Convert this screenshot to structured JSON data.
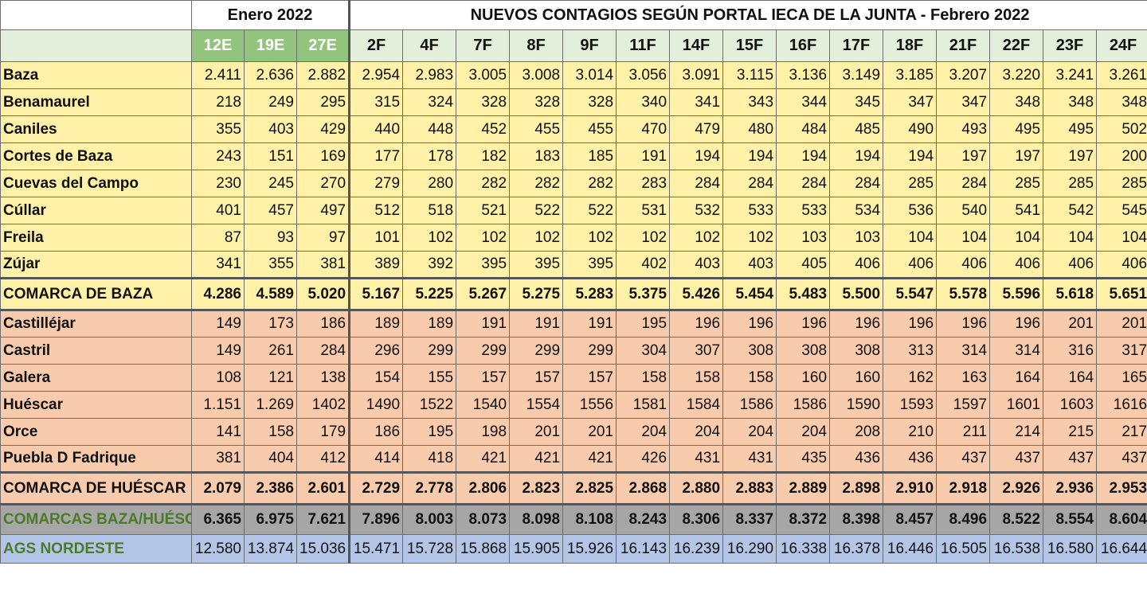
{
  "header": {
    "jan_group": "Enero 2022",
    "feb_group": "NUEVOS CONTAGIOS  SEGÚN PORTAL IECA DE LA JUNTA - Febrero 2022",
    "jan_dates": [
      "12E",
      "19E",
      "27E"
    ],
    "feb_dates": [
      "2F",
      "4F",
      "7F",
      "8F",
      "9F",
      "11F",
      "14F",
      "15F",
      "16F",
      "17F",
      "18F",
      "21F",
      "22F",
      "23F",
      "24F"
    ]
  },
  "rows": [
    {
      "name": "Baza",
      "group": "yellow",
      "values": [
        "2.411",
        "2.636",
        "2.882",
        "2.954",
        "2.983",
        "3.005",
        "3.008",
        "3.014",
        "3.056",
        "3.091",
        "3.115",
        "3.136",
        "3.149",
        "3.185",
        "3.207",
        "3.220",
        "3.241",
        "3.261"
      ]
    },
    {
      "name": "Benamaurel",
      "group": "yellow",
      "values": [
        "218",
        "249",
        "295",
        "315",
        "324",
        "328",
        "328",
        "328",
        "340",
        "341",
        "343",
        "344",
        "345",
        "347",
        "347",
        "348",
        "348",
        "348"
      ]
    },
    {
      "name": "Caniles",
      "group": "yellow",
      "values": [
        "355",
        "403",
        "429",
        "440",
        "448",
        "452",
        "455",
        "455",
        "470",
        "479",
        "480",
        "484",
        "485",
        "490",
        "493",
        "495",
        "495",
        "502"
      ]
    },
    {
      "name": "Cortes de Baza",
      "group": "yellow",
      "values": [
        "243",
        "151",
        "169",
        "177",
        "178",
        "182",
        "183",
        "185",
        "191",
        "194",
        "194",
        "194",
        "194",
        "194",
        "197",
        "197",
        "197",
        "200"
      ]
    },
    {
      "name": "Cuevas del Campo",
      "group": "yellow",
      "values": [
        "230",
        "245",
        "270",
        "279",
        "280",
        "282",
        "282",
        "282",
        "283",
        "284",
        "284",
        "284",
        "284",
        "285",
        "284",
        "285",
        "285",
        "285"
      ]
    },
    {
      "name": "Cúllar",
      "group": "yellow",
      "values": [
        "401",
        "457",
        "497",
        "512",
        "518",
        "521",
        "522",
        "522",
        "531",
        "532",
        "533",
        "533",
        "534",
        "536",
        "540",
        "541",
        "542",
        "545"
      ]
    },
    {
      "name": "Freila",
      "group": "yellow",
      "values": [
        "87",
        "93",
        "97",
        "101",
        "102",
        "102",
        "102",
        "102",
        "102",
        "102",
        "102",
        "103",
        "103",
        "104",
        "104",
        "104",
        "104",
        "104"
      ]
    },
    {
      "name": "Zújar",
      "group": "yellow",
      "values": [
        "341",
        "355",
        "381",
        "389",
        "392",
        "395",
        "395",
        "395",
        "402",
        "403",
        "403",
        "405",
        "406",
        "406",
        "406",
        "406",
        "406",
        "406"
      ]
    },
    {
      "name": "COMARCA DE BAZA",
      "group": "yellow-total",
      "values": [
        "4.286",
        "4.589",
        "5.020",
        "5.167",
        "5.225",
        "5.267",
        "5.275",
        "5.283",
        "5.375",
        "5.426",
        "5.454",
        "5.483",
        "5.500",
        "5.547",
        "5.578",
        "5.596",
        "5.618",
        "5.651"
      ]
    },
    {
      "name": "Castilléjar",
      "group": "orange",
      "values": [
        "149",
        "173",
        "186",
        "189",
        "189",
        "191",
        "191",
        "191",
        "195",
        "196",
        "196",
        "196",
        "196",
        "196",
        "196",
        "196",
        "201",
        "201"
      ]
    },
    {
      "name": "Castril",
      "group": "orange",
      "values": [
        "149",
        "261",
        "284",
        "296",
        "299",
        "299",
        "299",
        "299",
        "304",
        "307",
        "308",
        "308",
        "308",
        "313",
        "314",
        "314",
        "316",
        "317"
      ]
    },
    {
      "name": "Galera",
      "group": "orange",
      "values": [
        "108",
        "121",
        "138",
        "154",
        "155",
        "157",
        "157",
        "157",
        "158",
        "158",
        "158",
        "160",
        "160",
        "162",
        "163",
        "164",
        "164",
        "165"
      ]
    },
    {
      "name": "Huéscar",
      "group": "orange",
      "values": [
        "1.151",
        "1.269",
        "1402",
        "1490",
        "1522",
        "1540",
        "1554",
        "1556",
        "1581",
        "1584",
        "1586",
        "1586",
        "1590",
        "1593",
        "1597",
        "1601",
        "1603",
        "1616"
      ]
    },
    {
      "name": "Orce",
      "group": "orange",
      "values": [
        "141",
        "158",
        "179",
        "186",
        "195",
        "198",
        "201",
        "201",
        "204",
        "204",
        "204",
        "204",
        "208",
        "210",
        "211",
        "214",
        "215",
        "217"
      ]
    },
    {
      "name": "Puebla D Fadrique",
      "group": "orange",
      "values": [
        "381",
        "404",
        "412",
        "414",
        "418",
        "421",
        "421",
        "421",
        "426",
        "431",
        "431",
        "435",
        "436",
        "436",
        "437",
        "437",
        "437",
        "437"
      ]
    },
    {
      "name": "COMARCA DE HUÉSCAR",
      "group": "orange-total",
      "values": [
        "2.079",
        "2.386",
        "2.601",
        "2.729",
        "2.778",
        "2.806",
        "2.823",
        "2.825",
        "2.868",
        "2.880",
        "2.883",
        "2.889",
        "2.898",
        "2.910",
        "2.918",
        "2.926",
        "2.936",
        "2.953"
      ]
    },
    {
      "name": "COMARCAS BAZA/HUÉSCAR",
      "group": "gray",
      "values": [
        "6.365",
        "6.975",
        "7.621",
        "7.896",
        "8.003",
        "8.073",
        "8.098",
        "8.108",
        "8.243",
        "8.306",
        "8.337",
        "8.372",
        "8.398",
        "8.457",
        "8.496",
        "8.522",
        "8.554",
        "8.604"
      ]
    },
    {
      "name": "AGS NORDESTE",
      "group": "blue",
      "values": [
        "12.580",
        "13.874",
        "15.036",
        "15.471",
        "15.728",
        "15.868",
        "15.905",
        "15.926",
        "16.143",
        "16.239",
        "16.290",
        "16.338",
        "16.378",
        "16.446",
        "16.505",
        "16.538",
        "16.580",
        "16.644"
      ]
    }
  ],
  "colors": {
    "yellow_fill": "#fff2a8",
    "orange_fill": "#f8cbad",
    "gray_fill": "#a6a6a6",
    "blue_fill": "#b4c6e7",
    "header_green": "#93c47d",
    "header_light": "#e2efda",
    "label_green_text": "#4a7a2a"
  }
}
